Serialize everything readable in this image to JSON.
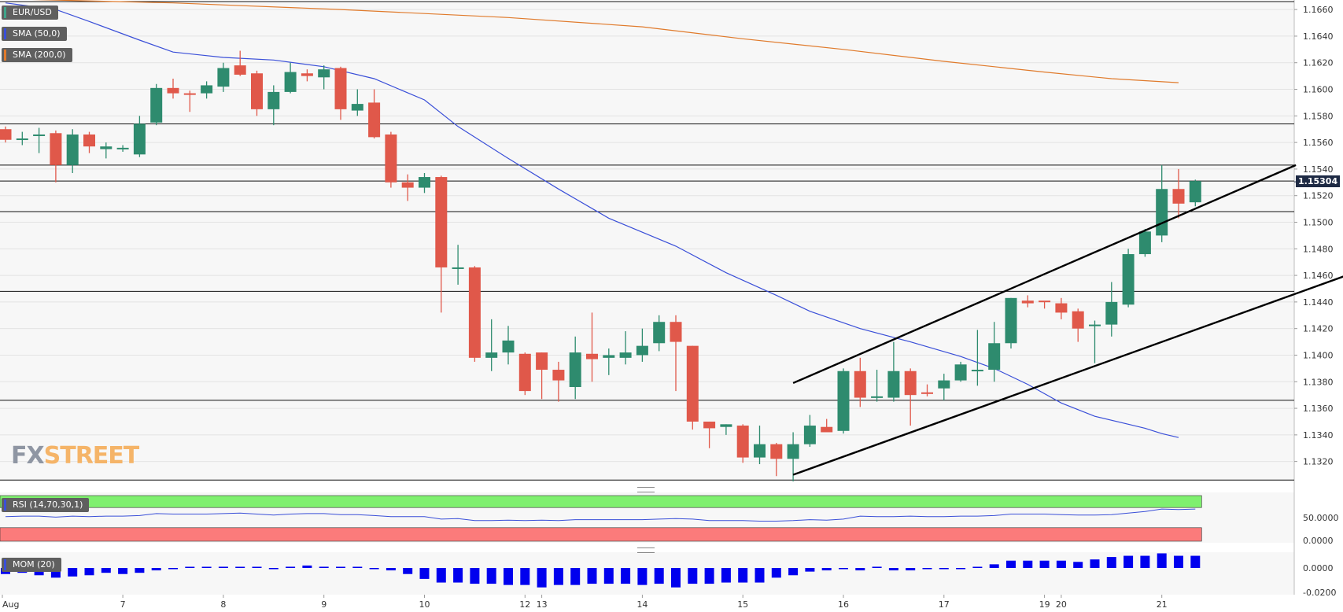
{
  "legend": {
    "symbol": "EUR/USD",
    "sma50": "SMA (50,0)",
    "sma200": "SMA (200,0)",
    "rsi": "RSI (14,70,30,1)",
    "mom": "MOM (20)"
  },
  "logo": {
    "fx": "FX",
    "street": "STREET"
  },
  "colors": {
    "up": "#2e8b6e",
    "down": "#e0584a",
    "sma50": "#3a4fd8",
    "sma200": "#e07a2b",
    "rsi_overbought": "#7ff06f",
    "rsi_oversold": "#fb7b7b",
    "mom": "#0000ee"
  },
  "current_price": "1.15304",
  "chart_data": {
    "type": "candlestick",
    "y_ticks": [
      "1.1660",
      "1.1640",
      "1.1620",
      "1.1600",
      "1.1580",
      "1.1560",
      "1.1540",
      "1.1520",
      "1.1500",
      "1.1480",
      "1.1460",
      "1.1440",
      "1.1420",
      "1.1400",
      "1.1380",
      "1.1360",
      "1.1340",
      "1.1320"
    ],
    "ylim": [
      1.1305,
      1.1666
    ],
    "x_labels": [
      {
        "label": "Aug",
        "bar": 0
      },
      {
        "label": "7",
        "bar": 7
      },
      {
        "label": "8",
        "bar": 13
      },
      {
        "label": "9",
        "bar": 19
      },
      {
        "label": "10",
        "bar": 25
      },
      {
        "label": "12",
        "bar": 31
      },
      {
        "label": "13",
        "bar": 32
      },
      {
        "label": "14",
        "bar": 38
      },
      {
        "label": "15",
        "bar": 44
      },
      {
        "label": "16",
        "bar": 50
      },
      {
        "label": "17",
        "bar": 56
      },
      {
        "label": "19",
        "bar": 62
      },
      {
        "label": "20",
        "bar": 63
      },
      {
        "label": "21",
        "bar": 69
      }
    ],
    "ohlc": [
      [
        1.157,
        1.1572,
        1.156,
        1.1562
      ],
      [
        1.1563,
        1.1568,
        1.1558,
        1.1563
      ],
      [
        1.1566,
        1.1571,
        1.1552,
        1.1566
      ],
      [
        1.1567,
        1.1569,
        1.153,
        1.1543
      ],
      [
        1.1543,
        1.157,
        1.1537,
        1.1566
      ],
      [
        1.1566,
        1.1568,
        1.1552,
        1.1557
      ],
      [
        1.1555,
        1.156,
        1.1548,
        1.1557
      ],
      [
        1.1555,
        1.1558,
        1.1553,
        1.1556
      ],
      [
        1.1551,
        1.158,
        1.1549,
        1.1574
      ],
      [
        1.1575,
        1.1604,
        1.1573,
        1.1601
      ],
      [
        1.1601,
        1.1608,
        1.1593,
        1.1597
      ],
      [
        1.1597,
        1.1599,
        1.1583,
        1.1596
      ],
      [
        1.1597,
        1.1606,
        1.1593,
        1.1603
      ],
      [
        1.1602,
        1.162,
        1.1598,
        1.1616
      ],
      [
        1.1618,
        1.1629,
        1.161,
        1.1611
      ],
      [
        1.1612,
        1.1614,
        1.158,
        1.1585
      ],
      [
        1.1585,
        1.1603,
        1.1573,
        1.1598
      ],
      [
        1.1598,
        1.162,
        1.1597,
        1.1613
      ],
      [
        1.1612,
        1.1615,
        1.1606,
        1.161
      ],
      [
        1.1609,
        1.1618,
        1.16,
        1.1615
      ],
      [
        1.1616,
        1.1617,
        1.1577,
        1.1585
      ],
      [
        1.1584,
        1.16,
        1.158,
        1.1589
      ],
      [
        1.159,
        1.16,
        1.1563,
        1.1564
      ],
      [
        1.1566,
        1.1568,
        1.1526,
        1.153
      ],
      [
        1.153,
        1.1536,
        1.1516,
        1.1526
      ],
      [
        1.1526,
        1.1537,
        1.1522,
        1.1534
      ],
      [
        1.1534,
        1.1535,
        1.1432,
        1.1466
      ],
      [
        1.1466,
        1.1483,
        1.1453,
        1.1466
      ],
      [
        1.1466,
        1.1467,
        1.1395,
        1.1398
      ],
      [
        1.1398,
        1.1427,
        1.1388,
        1.1402
      ],
      [
        1.1402,
        1.1422,
        1.1393,
        1.1411
      ],
      [
        1.1401,
        1.1402,
        1.137,
        1.1373
      ],
      [
        1.1402,
        1.1402,
        1.1367,
        1.1389
      ],
      [
        1.1389,
        1.1395,
        1.1365,
        1.1381
      ],
      [
        1.1376,
        1.1414,
        1.1367,
        1.1402
      ],
      [
        1.1401,
        1.1432,
        1.138,
        1.1397
      ],
      [
        1.1398,
        1.1405,
        1.1385,
        1.14
      ],
      [
        1.1398,
        1.1418,
        1.1393,
        1.1402
      ],
      [
        1.14,
        1.142,
        1.1395,
        1.1407
      ],
      [
        1.1409,
        1.143,
        1.1403,
        1.1425
      ],
      [
        1.1425,
        1.143,
        1.1373,
        1.141
      ],
      [
        1.1407,
        1.1407,
        1.1344,
        1.135
      ],
      [
        1.135,
        1.135,
        1.133,
        1.1345
      ],
      [
        1.1346,
        1.1348,
        1.134,
        1.1348
      ],
      [
        1.1347,
        1.1348,
        1.1319,
        1.1323
      ],
      [
        1.1323,
        1.1347,
        1.1318,
        1.1333
      ],
      [
        1.1333,
        1.1334,
        1.1309,
        1.1322
      ],
      [
        1.1322,
        1.1342,
        1.1305,
        1.1333
      ],
      [
        1.1333,
        1.1355,
        1.1331,
        1.1347
      ],
      [
        1.1346,
        1.1352,
        1.1344,
        1.1342
      ],
      [
        1.1343,
        1.139,
        1.1341,
        1.1388
      ],
      [
        1.1388,
        1.1398,
        1.1361,
        1.1368
      ],
      [
        1.1368,
        1.1389,
        1.1365,
        1.1369
      ],
      [
        1.1368,
        1.141,
        1.1365,
        1.1388
      ],
      [
        1.1388,
        1.139,
        1.1347,
        1.137
      ],
      [
        1.1372,
        1.1378,
        1.1369,
        1.1371
      ],
      [
        1.1375,
        1.1386,
        1.1366,
        1.1381
      ],
      [
        1.1381,
        1.1395,
        1.138,
        1.1393
      ],
      [
        1.1389,
        1.1419,
        1.1377,
        1.1389
      ],
      [
        1.1389,
        1.1425,
        1.138,
        1.1409
      ],
      [
        1.1409,
        1.1443,
        1.1405,
        1.1443
      ],
      [
        1.1441,
        1.1445,
        1.1436,
        1.1439
      ],
      [
        1.1441,
        1.144,
        1.1435,
        1.144
      ],
      [
        1.1439,
        1.1443,
        1.1427,
        1.1432
      ],
      [
        1.1433,
        1.1435,
        1.141,
        1.142
      ],
      [
        1.1422,
        1.1426,
        1.1394,
        1.1423
      ],
      [
        1.1423,
        1.1455,
        1.1414,
        1.144
      ],
      [
        1.1438,
        1.148,
        1.1436,
        1.1476
      ],
      [
        1.1476,
        1.1495,
        1.1474,
        1.1493
      ],
      [
        1.149,
        1.1543,
        1.1485,
        1.1525
      ],
      [
        1.1525,
        1.154,
        1.1503,
        1.1514
      ],
      [
        1.1515,
        1.1532,
        1.1512,
        1.1531
      ]
    ],
    "sma50": [
      [
        0,
        1.1665
      ],
      [
        3,
        1.166
      ],
      [
        5,
        1.1651
      ],
      [
        8,
        1.1637
      ],
      [
        10,
        1.1628
      ],
      [
        13,
        1.1624
      ],
      [
        16,
        1.1622
      ],
      [
        19,
        1.1617
      ],
      [
        22,
        1.1608
      ],
      [
        25,
        1.1592
      ],
      [
        27,
        1.1572
      ],
      [
        30,
        1.1548
      ],
      [
        33,
        1.1525
      ],
      [
        36,
        1.1503
      ],
      [
        40,
        1.1482
      ],
      [
        43,
        1.1462
      ],
      [
        46,
        1.1445
      ],
      [
        48,
        1.1433
      ],
      [
        51,
        1.142
      ],
      [
        54,
        1.141
      ],
      [
        57,
        1.1399
      ],
      [
        59,
        1.139
      ],
      [
        61,
        1.1378
      ],
      [
        63,
        1.1364
      ],
      [
        65,
        1.1354
      ],
      [
        67,
        1.1348
      ],
      [
        68,
        1.1345
      ],
      [
        69,
        1.1341
      ],
      [
        70,
        1.1338
      ]
    ],
    "sma200": [
      [
        0,
        1.1668
      ],
      [
        10,
        1.1665
      ],
      [
        20,
        1.166
      ],
      [
        30,
        1.1654
      ],
      [
        38,
        1.1647
      ],
      [
        44,
        1.1638
      ],
      [
        50,
        1.163
      ],
      [
        56,
        1.1621
      ],
      [
        62,
        1.1613
      ],
      [
        66,
        1.1608
      ],
      [
        70,
        1.1605
      ]
    ],
    "horizontal_levels": [
      1.1666,
      1.1574,
      1.1543,
      1.1531,
      1.1508,
      1.1448,
      1.1366,
      1.1306
    ],
    "channel_lines": [
      [
        [
          47,
          1.1379
        ],
        [
          77,
          1.1543
        ]
      ],
      [
        [
          47,
          1.131
        ],
        [
          82,
          1.1469
        ]
      ]
    ],
    "rsi": {
      "ticks": [
        "50.0000",
        "0.0000"
      ],
      "values": [
        52,
        53,
        53,
        51,
        53,
        52,
        53,
        53,
        54,
        58,
        57,
        57,
        57,
        58,
        59,
        57,
        55,
        57,
        58,
        58,
        56,
        56,
        54,
        52,
        52,
        52,
        47,
        48,
        44,
        44,
        45,
        44,
        45,
        44,
        46,
        46,
        46,
        46,
        46,
        47,
        48,
        47,
        44,
        44,
        44,
        43,
        43,
        44,
        46,
        45,
        47,
        53,
        52,
        52,
        53,
        52,
        52,
        53,
        53,
        54,
        57,
        57,
        57,
        56,
        55,
        55,
        56,
        59,
        62,
        67,
        66,
        67
      ]
    },
    "mom": {
      "ticks": [
        "0.0000",
        "-0.0200"
      ],
      "values": [
        -0.005,
        -0.004,
        -0.006,
        -0.008,
        -0.007,
        -0.006,
        -0.004,
        -0.005,
        -0.004,
        -0.002,
        -0.001,
        0.0,
        0.0,
        0.001,
        0.0,
        0.0,
        -0.001,
        0.001,
        0.002,
        0.001,
        0.0,
        0.0,
        -0.001,
        -0.002,
        -0.005,
        -0.009,
        -0.012,
        -0.012,
        -0.013,
        -0.013,
        -0.014,
        -0.014,
        -0.016,
        -0.014,
        -0.014,
        -0.013,
        -0.013,
        -0.013,
        -0.014,
        -0.013,
        -0.016,
        -0.013,
        -0.013,
        -0.012,
        -0.012,
        -0.012,
        -0.008,
        -0.006,
        -0.003,
        -0.002,
        -0.001,
        -0.002,
        0.001,
        -0.002,
        -0.002,
        -0.001,
        -0.001,
        -0.001,
        0.0,
        0.003,
        0.006,
        0.006,
        0.006,
        0.006,
        0.005,
        0.007,
        0.009,
        0.01,
        0.01,
        0.012,
        0.01,
        0.01
      ]
    }
  }
}
